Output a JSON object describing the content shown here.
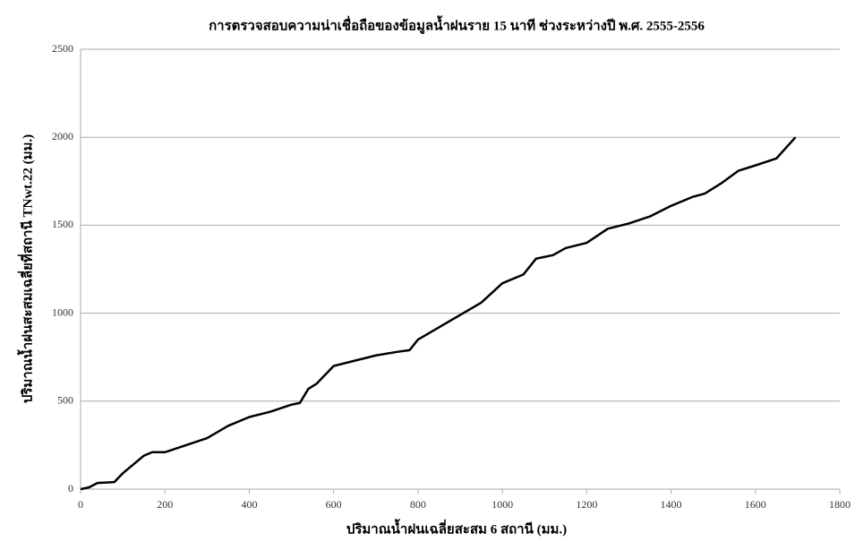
{
  "chart_data": {
    "type": "line",
    "title": "การตรวจสอบความน่าเชื่อถือของข้อมูลน้ำฝนราย 15 นาที ช่วงระหว่างปี พ.ศ. 2555-2556",
    "x_label": "ปริมาณน้ำฝนเฉลี่ยสะสม 6  สถานี (มม.)",
    "y_label": "ปริมาณน้ำฝนสะสมเฉลี่ยที่สถานี TNwt.22 (มม.)",
    "x": [
      0,
      20,
      40,
      80,
      100,
      150,
      170,
      200,
      250,
      300,
      350,
      400,
      450,
      500,
      520,
      540,
      560,
      600,
      650,
      700,
      750,
      780,
      800,
      850,
      900,
      950,
      1000,
      1050,
      1080,
      1120,
      1150,
      1200,
      1250,
      1300,
      1350,
      1400,
      1450,
      1480,
      1520,
      1560,
      1600,
      1650,
      1695
    ],
    "values": [
      0,
      10,
      35,
      40,
      90,
      190,
      210,
      210,
      250,
      290,
      360,
      410,
      440,
      480,
      490,
      570,
      600,
      700,
      730,
      760,
      780,
      790,
      850,
      920,
      990,
      1060,
      1170,
      1220,
      1310,
      1330,
      1370,
      1400,
      1480,
      1510,
      1550,
      1610,
      1660,
      1680,
      1740,
      1810,
      1840,
      1880,
      2000
    ],
    "color": "#000000",
    "xlim": [
      0,
      1800
    ],
    "xticks": [
      0,
      200,
      400,
      600,
      800,
      1000,
      1200,
      1400,
      1600,
      1800
    ],
    "ylim": [
      0,
      2500
    ],
    "yticks": [
      0,
      500,
      1000,
      1500,
      2000,
      2500
    ],
    "grid": true
  }
}
